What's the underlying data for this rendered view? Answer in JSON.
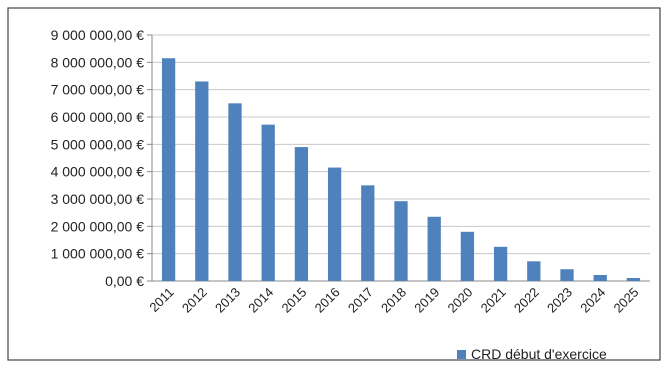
{
  "chart_data": {
    "type": "bar",
    "categories": [
      "2011",
      "2012",
      "2013",
      "2014",
      "2015",
      "2016",
      "2017",
      "2018",
      "2019",
      "2020",
      "2021",
      "2022",
      "2023",
      "2024",
      "2025"
    ],
    "series": [
      {
        "name": "CRD début d'exercice",
        "values": [
          8150000,
          7300000,
          6500000,
          5720000,
          4900000,
          4150000,
          3500000,
          2920000,
          2350000,
          1800000,
          1250000,
          720000,
          430000,
          220000,
          110000
        ],
        "color": "#4F81BD"
      }
    ],
    "yticks": [
      {
        "value": 0,
        "label": "0,00 €"
      },
      {
        "value": 1000000,
        "label": "1 000 000,00 €"
      },
      {
        "value": 2000000,
        "label": "2 000 000,00 €"
      },
      {
        "value": 3000000,
        "label": "3 000 000,00 €"
      },
      {
        "value": 4000000,
        "label": "4 000 000,00 €"
      },
      {
        "value": 5000000,
        "label": "5 000 000,00 €"
      },
      {
        "value": 6000000,
        "label": "6 000 000,00 €"
      },
      {
        "value": 7000000,
        "label": "7 000 000,00 €"
      },
      {
        "value": 8000000,
        "label": "8 000 000,00 €"
      },
      {
        "value": 9000000,
        "label": "9 000 000,00 €"
      }
    ],
    "ylim": [
      0,
      9000000
    ],
    "grid": true,
    "legend_position": "bottom-right",
    "colors": {
      "bar": "#4F81BD",
      "grid": "#C8C8C8",
      "axis": "#888888",
      "frame": "#444444"
    }
  }
}
